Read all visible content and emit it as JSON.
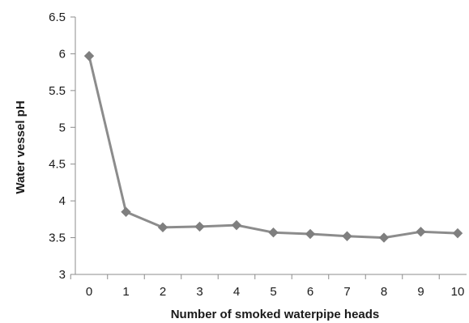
{
  "chart_data": {
    "type": "line",
    "title": "",
    "xlabel": "Number of smoked waterpipe heads",
    "ylabel": "Water vessel pH",
    "x": [
      0,
      1,
      2,
      3,
      4,
      5,
      6,
      7,
      8,
      9,
      10
    ],
    "series": [
      {
        "values": [
          5.97,
          3.85,
          3.64,
          3.65,
          3.67,
          3.57,
          3.55,
          3.52,
          3.5,
          3.58,
          3.56
        ]
      }
    ],
    "xticks": [
      "0",
      "1",
      "2",
      "3",
      "4",
      "5",
      "6",
      "7",
      "8",
      "9",
      "10"
    ],
    "yticks": [
      "3",
      "3.5",
      "4",
      "4.5",
      "5",
      "5.5",
      "6",
      "6.5"
    ],
    "ylim": [
      3,
      6.5
    ],
    "xlim": [
      0,
      10
    ],
    "grid": false,
    "legend": "none",
    "marker": "diamond",
    "line_color": "#8c8c8c",
    "marker_color": "#7f7f7f",
    "axis_color": "#8c8c8c"
  }
}
